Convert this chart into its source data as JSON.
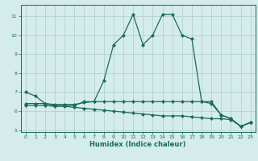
{
  "xlabel": "Humidex (Indice chaleur)",
  "x": [
    0,
    1,
    2,
    3,
    4,
    5,
    6,
    7,
    8,
    9,
    10,
    11,
    12,
    13,
    14,
    15,
    16,
    17,
    18,
    19,
    20,
    21,
    22,
    23
  ],
  "series1": [
    7.0,
    6.8,
    6.4,
    6.3,
    6.3,
    6.3,
    6.5,
    6.5,
    7.6,
    9.5,
    10.0,
    11.1,
    9.5,
    10.0,
    11.1,
    11.1,
    10.0,
    9.8,
    6.5,
    6.5,
    5.8,
    5.6,
    5.2,
    5.4
  ],
  "series2": [
    6.4,
    6.4,
    6.4,
    6.35,
    6.35,
    6.35,
    6.45,
    6.5,
    6.5,
    6.5,
    6.5,
    6.5,
    6.5,
    6.5,
    6.5,
    6.5,
    6.5,
    6.5,
    6.5,
    6.4,
    5.8,
    5.6,
    5.2,
    5.4
  ],
  "series3": [
    6.3,
    6.3,
    6.3,
    6.25,
    6.25,
    6.2,
    6.15,
    6.1,
    6.05,
    6.0,
    5.95,
    5.9,
    5.85,
    5.8,
    5.75,
    5.75,
    5.75,
    5.7,
    5.65,
    5.6,
    5.6,
    5.55,
    5.2,
    5.4
  ],
  "xlim": [
    -0.5,
    23.5
  ],
  "ylim": [
    4.9,
    11.6
  ],
  "yticks": [
    5,
    6,
    7,
    8,
    9,
    10,
    11
  ],
  "xticks": [
    0,
    1,
    2,
    3,
    4,
    5,
    6,
    7,
    8,
    9,
    10,
    11,
    12,
    13,
    14,
    15,
    16,
    17,
    18,
    19,
    20,
    21,
    22,
    23
  ],
  "line_color": "#1a6b5a",
  "bg_color": "#d4ecec",
  "grid_color": "#b0cccc"
}
